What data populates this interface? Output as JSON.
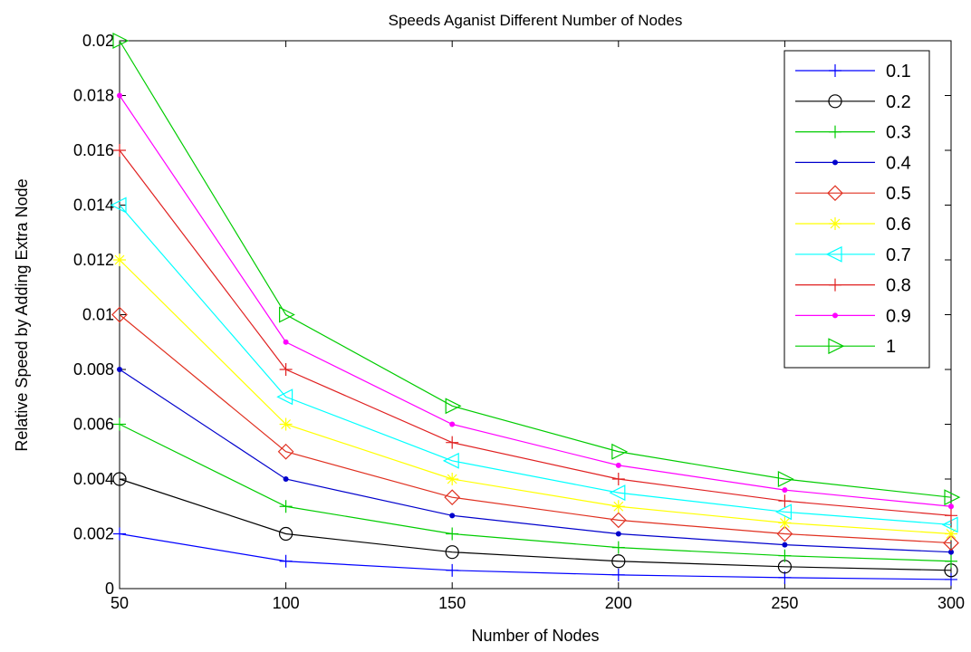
{
  "chart_data": {
    "type": "line",
    "title": "Speeds Aganist Different Number of Nodes",
    "xlabel": "Number of Nodes",
    "ylabel": "Relative Speed by Adding Extra Node",
    "x": [
      50,
      100,
      150,
      200,
      250,
      300
    ],
    "xlim": [
      50,
      300
    ],
    "ylim": [
      0,
      0.02
    ],
    "xticks": [
      "50",
      "100",
      "150",
      "200",
      "250",
      "300"
    ],
    "yticks": [
      "0",
      "0.002",
      "0.004",
      "0.006",
      "0.008",
      "0.01",
      "0.012",
      "0.014",
      "0.016",
      "0.018",
      "0.02"
    ],
    "grid": false,
    "legend_position": "top-right",
    "series": [
      {
        "name": "0.1",
        "color": "#0000ff",
        "marker": "plus",
        "values": [
          0.002,
          0.001,
          0.000667,
          0.0005,
          0.0004,
          0.000333
        ]
      },
      {
        "name": "0.2",
        "color": "#000000",
        "marker": "circle",
        "values": [
          0.004,
          0.002,
          0.001333,
          0.001,
          0.0008,
          0.000667
        ]
      },
      {
        "name": "0.3",
        "color": "#00cc00",
        "marker": "plus",
        "values": [
          0.006,
          0.003,
          0.002,
          0.0015,
          0.0012,
          0.001
        ]
      },
      {
        "name": "0.4",
        "color": "#0000cc",
        "marker": "dot",
        "values": [
          0.008,
          0.004,
          0.002667,
          0.002,
          0.0016,
          0.001333
        ]
      },
      {
        "name": "0.5",
        "color": "#e03020",
        "marker": "diamond",
        "values": [
          0.01,
          0.005,
          0.003333,
          0.0025,
          0.002,
          0.001667
        ]
      },
      {
        "name": "0.6",
        "color": "#ffff00",
        "marker": "star",
        "values": [
          0.012,
          0.006,
          0.004,
          0.003,
          0.0024,
          0.002
        ]
      },
      {
        "name": "0.7",
        "color": "#00ffff",
        "marker": "triangle-left",
        "values": [
          0.014,
          0.007,
          0.004667,
          0.0035,
          0.0028,
          0.002333
        ]
      },
      {
        "name": "0.8",
        "color": "#e02020",
        "marker": "plus",
        "values": [
          0.016,
          0.008,
          0.005333,
          0.004,
          0.0032,
          0.002667
        ]
      },
      {
        "name": "0.9",
        "color": "#ff00ff",
        "marker": "dot",
        "values": [
          0.018,
          0.009,
          0.006,
          0.0045,
          0.0036,
          0.003
        ]
      },
      {
        "name": "1",
        "color": "#00cc00",
        "marker": "triangle-right",
        "values": [
          0.02,
          0.01,
          0.006667,
          0.005,
          0.004,
          0.003333
        ]
      }
    ]
  }
}
